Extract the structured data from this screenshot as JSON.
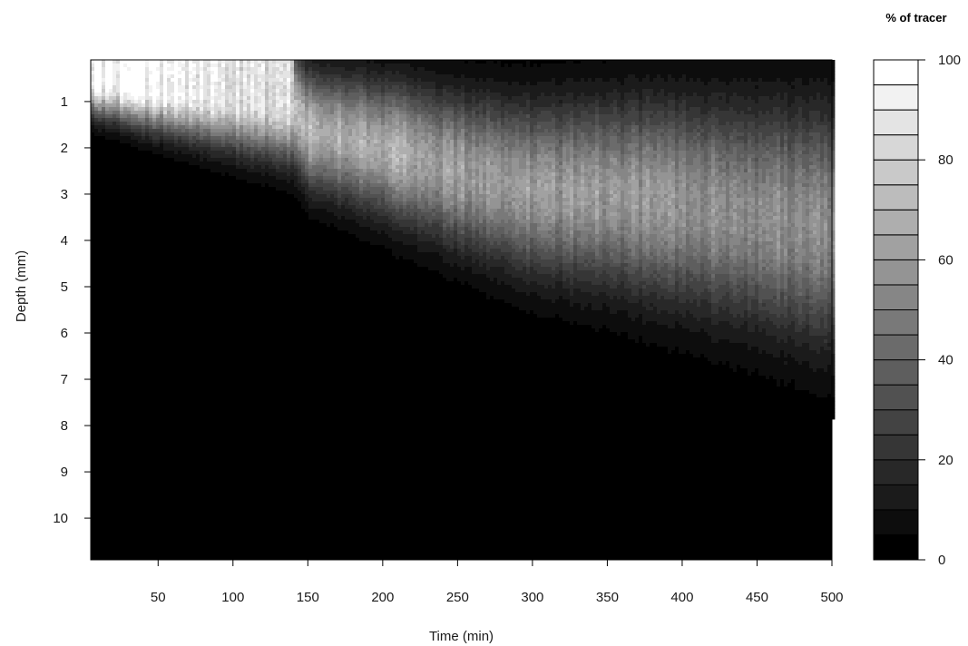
{
  "chart_data": {
    "type": "heatmap",
    "title": "",
    "xlabel": "Time (min)",
    "ylabel": "Depth (mm)",
    "xlim": [
      5,
      500
    ],
    "ylim": [
      0.1,
      10.9
    ],
    "x_ticks": [
      50,
      100,
      150,
      200,
      250,
      300,
      350,
      400,
      450,
      500
    ],
    "y_ticks": [
      1,
      2,
      3,
      4,
      5,
      6,
      7,
      8,
      9,
      10
    ],
    "y_reversed": true,
    "colormap": "greyscale black (0) to white (100)",
    "legend": {
      "title": "% of tracer",
      "placement": "right",
      "range": [
        0,
        100
      ],
      "levels": [
        0,
        5,
        10,
        15,
        20,
        25,
        30,
        35,
        40,
        45,
        50,
        55,
        60,
        65,
        70,
        75,
        80,
        85,
        90,
        95,
        100
      ],
      "ticks": [
        0,
        20,
        40,
        60,
        80,
        100
      ]
    },
    "peak_time": [
      5,
      50,
      100,
      140,
      150,
      200,
      250,
      300,
      350,
      400,
      450,
      500
    ],
    "peak_depth": [
      0.55,
      0.75,
      0.95,
      1.1,
      1.6,
      2.0,
      2.5,
      2.9,
      3.0,
      3.2,
      3.45,
      3.7
    ],
    "peak_percent": [
      100,
      96,
      88,
      84,
      70,
      66,
      62,
      60,
      60,
      57,
      56,
      55
    ]
  }
}
